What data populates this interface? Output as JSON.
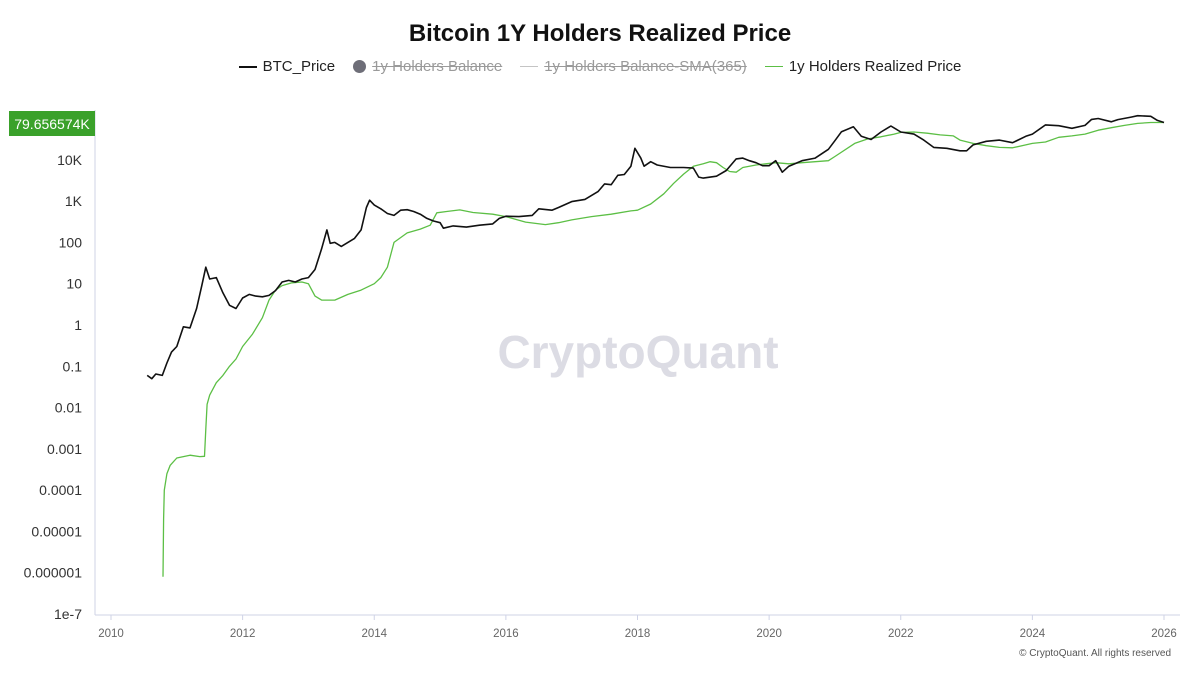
{
  "chart_data": {
    "type": "line",
    "title": "Bitcoin 1Y Holders Realized Price",
    "yscale": "log",
    "ylim": [
      1e-07,
      100000
    ],
    "xlim": [
      2010,
      2026
    ],
    "ytick_values": [
      1e-07,
      1e-06,
      1e-05,
      0.0001,
      0.001,
      0.01,
      0.1,
      1,
      10,
      100,
      1000,
      10000
    ],
    "ytick_labels": [
      "1e-7",
      "0.000001",
      "0.00001",
      "0.0001",
      "0.001",
      "0.01",
      "0.1",
      "1",
      "10",
      "100",
      "1K",
      "10K"
    ],
    "xtick_labels": [
      "2010",
      "2012",
      "2014",
      "2016",
      "2018",
      "2020",
      "2022",
      "2024",
      "2026"
    ],
    "current_value_label": "79.656574K",
    "current_value": 79656.574,
    "watermark": "CryptoQuant",
    "copyright": "© CryptoQuant. All rights reserved",
    "legend": [
      {
        "label": "BTC_Price",
        "symbol": "line",
        "color": "#111111",
        "active": true
      },
      {
        "label": "1y Holders Balance",
        "symbol": "dot",
        "color": "#6e6e78",
        "active": false
      },
      {
        "label": "1y Holders Balance-SMA(365)",
        "symbol": "thin-line",
        "color": "#c4c4c4",
        "active": false
      },
      {
        "label": "1y Holders Realized Price",
        "symbol": "line",
        "color": "#5cbf45",
        "active": true
      }
    ],
    "series": [
      {
        "name": "BTC_Price",
        "color": "#111111",
        "points": [
          [
            2010.55,
            0.06
          ],
          [
            2010.62,
            0.05
          ],
          [
            2010.68,
            0.065
          ],
          [
            2010.78,
            0.06
          ],
          [
            2010.85,
            0.12
          ],
          [
            2010.92,
            0.22
          ],
          [
            2011.0,
            0.3
          ],
          [
            2011.1,
            0.9
          ],
          [
            2011.2,
            0.85
          ],
          [
            2011.3,
            2.5
          ],
          [
            2011.38,
            9
          ],
          [
            2011.44,
            25
          ],
          [
            2011.5,
            13
          ],
          [
            2011.6,
            14
          ],
          [
            2011.7,
            6
          ],
          [
            2011.8,
            3
          ],
          [
            2011.9,
            2.5
          ],
          [
            2012.0,
            4.5
          ],
          [
            2012.1,
            5.5
          ],
          [
            2012.2,
            5
          ],
          [
            2012.3,
            4.8
          ],
          [
            2012.4,
            5.2
          ],
          [
            2012.5,
            6.8
          ],
          [
            2012.6,
            11
          ],
          [
            2012.7,
            12
          ],
          [
            2012.8,
            11
          ],
          [
            2012.9,
            13
          ],
          [
            2013.0,
            14
          ],
          [
            2013.1,
            22
          ],
          [
            2013.2,
            70
          ],
          [
            2013.28,
            200
          ],
          [
            2013.33,
            95
          ],
          [
            2013.4,
            100
          ],
          [
            2013.5,
            80
          ],
          [
            2013.6,
            100
          ],
          [
            2013.7,
            125
          ],
          [
            2013.8,
            200
          ],
          [
            2013.88,
            700
          ],
          [
            2013.93,
            1050
          ],
          [
            2014.0,
            800
          ],
          [
            2014.1,
            650
          ],
          [
            2014.2,
            500
          ],
          [
            2014.3,
            450
          ],
          [
            2014.4,
            600
          ],
          [
            2014.5,
            620
          ],
          [
            2014.6,
            560
          ],
          [
            2014.7,
            480
          ],
          [
            2014.8,
            380
          ],
          [
            2014.9,
            330
          ],
          [
            2015.0,
            300
          ],
          [
            2015.05,
            220
          ],
          [
            2015.2,
            250
          ],
          [
            2015.4,
            235
          ],
          [
            2015.6,
            260
          ],
          [
            2015.8,
            280
          ],
          [
            2015.9,
            380
          ],
          [
            2016.0,
            430
          ],
          [
            2016.2,
            420
          ],
          [
            2016.4,
            450
          ],
          [
            2016.5,
            650
          ],
          [
            2016.7,
            600
          ],
          [
            2016.8,
            700
          ],
          [
            2017.0,
            970
          ],
          [
            2017.2,
            1100
          ],
          [
            2017.4,
            1700
          ],
          [
            2017.5,
            2600
          ],
          [
            2017.6,
            2500
          ],
          [
            2017.7,
            4200
          ],
          [
            2017.8,
            4400
          ],
          [
            2017.9,
            7000
          ],
          [
            2017.96,
            19000
          ],
          [
            2018.05,
            11000
          ],
          [
            2018.1,
            7000
          ],
          [
            2018.2,
            9000
          ],
          [
            2018.3,
            7500
          ],
          [
            2018.5,
            6500
          ],
          [
            2018.7,
            6500
          ],
          [
            2018.85,
            6300
          ],
          [
            2018.93,
            3800
          ],
          [
            2019.0,
            3600
          ],
          [
            2019.2,
            4000
          ],
          [
            2019.35,
            5500
          ],
          [
            2019.5,
            10500
          ],
          [
            2019.6,
            11000
          ],
          [
            2019.7,
            9500
          ],
          [
            2019.8,
            8500
          ],
          [
            2019.9,
            7200
          ],
          [
            2020.0,
            7200
          ],
          [
            2020.1,
            9500
          ],
          [
            2020.2,
            5000
          ],
          [
            2020.3,
            7000
          ],
          [
            2020.5,
            9500
          ],
          [
            2020.7,
            11000
          ],
          [
            2020.9,
            18000
          ],
          [
            2021.0,
            29000
          ],
          [
            2021.1,
            48000
          ],
          [
            2021.28,
            63000
          ],
          [
            2021.4,
            37000
          ],
          [
            2021.55,
            31000
          ],
          [
            2021.7,
            47000
          ],
          [
            2021.85,
            66000
          ],
          [
            2022.0,
            47000
          ],
          [
            2022.2,
            42000
          ],
          [
            2022.35,
            30000
          ],
          [
            2022.5,
            20000
          ],
          [
            2022.7,
            19000
          ],
          [
            2022.9,
            16500
          ],
          [
            2023.0,
            16500
          ],
          [
            2023.1,
            23000
          ],
          [
            2023.3,
            28000
          ],
          [
            2023.5,
            30000
          ],
          [
            2023.7,
            26000
          ],
          [
            2023.9,
            37000
          ],
          [
            2024.0,
            42000
          ],
          [
            2024.2,
            70000
          ],
          [
            2024.4,
            67000
          ],
          [
            2024.6,
            58000
          ],
          [
            2024.8,
            68000
          ],
          [
            2024.9,
            95000
          ],
          [
            2025.0,
            100000
          ],
          [
            2025.2,
            83000
          ],
          [
            2025.3,
            94000
          ],
          [
            2025.5,
            108000
          ],
          [
            2025.6,
            117000
          ],
          [
            2025.8,
            113000
          ],
          [
            2025.9,
            90000
          ],
          [
            2026.0,
            80000
          ]
        ]
      },
      {
        "name": "1y Holders Realized Price",
        "color": "#5cbf45",
        "points": [
          [
            2010.79,
            8e-07
          ],
          [
            2010.8,
            2e-05
          ],
          [
            2010.81,
            0.0001
          ],
          [
            2010.85,
            0.00025
          ],
          [
            2010.9,
            0.0004
          ],
          [
            2011.0,
            0.0006
          ],
          [
            2011.2,
            0.0007
          ],
          [
            2011.35,
            0.00065
          ],
          [
            2011.42,
            0.00066
          ],
          [
            2011.44,
            0.003
          ],
          [
            2011.46,
            0.012
          ],
          [
            2011.5,
            0.02
          ],
          [
            2011.6,
            0.04
          ],
          [
            2011.7,
            0.06
          ],
          [
            2011.8,
            0.1
          ],
          [
            2011.9,
            0.15
          ],
          [
            2012.0,
            0.3
          ],
          [
            2012.15,
            0.6
          ],
          [
            2012.3,
            1.5
          ],
          [
            2012.4,
            4
          ],
          [
            2012.5,
            7
          ],
          [
            2012.6,
            9
          ],
          [
            2012.75,
            10.5
          ],
          [
            2012.9,
            11
          ],
          [
            2013.0,
            10
          ],
          [
            2013.1,
            5
          ],
          [
            2013.2,
            4
          ],
          [
            2013.4,
            4
          ],
          [
            2013.6,
            5.5
          ],
          [
            2013.8,
            7
          ],
          [
            2014.0,
            10
          ],
          [
            2014.1,
            14
          ],
          [
            2014.2,
            25
          ],
          [
            2014.3,
            100
          ],
          [
            2014.5,
            170
          ],
          [
            2014.7,
            210
          ],
          [
            2014.85,
            260
          ],
          [
            2014.95,
            520
          ],
          [
            2015.1,
            560
          ],
          [
            2015.3,
            610
          ],
          [
            2015.5,
            530
          ],
          [
            2015.8,
            480
          ],
          [
            2016.0,
            420
          ],
          [
            2016.3,
            310
          ],
          [
            2016.6,
            270
          ],
          [
            2016.8,
            300
          ],
          [
            2017.0,
            350
          ],
          [
            2017.3,
            420
          ],
          [
            2017.6,
            480
          ],
          [
            2017.9,
            580
          ],
          [
            2018.0,
            600
          ],
          [
            2018.2,
            850
          ],
          [
            2018.4,
            1500
          ],
          [
            2018.55,
            2700
          ],
          [
            2018.7,
            4500
          ],
          [
            2018.85,
            7000
          ],
          [
            2019.0,
            8000
          ],
          [
            2019.1,
            9000
          ],
          [
            2019.2,
            8500
          ],
          [
            2019.3,
            6500
          ],
          [
            2019.4,
            5200
          ],
          [
            2019.5,
            5000
          ],
          [
            2019.6,
            6500
          ],
          [
            2019.8,
            7500
          ],
          [
            2019.95,
            8000
          ],
          [
            2020.1,
            8500
          ],
          [
            2020.3,
            8000
          ],
          [
            2020.5,
            8500
          ],
          [
            2020.7,
            9000
          ],
          [
            2020.9,
            9500
          ],
          [
            2021.0,
            12000
          ],
          [
            2021.3,
            25000
          ],
          [
            2021.5,
            32000
          ],
          [
            2021.7,
            36000
          ],
          [
            2021.9,
            42000
          ],
          [
            2022.0,
            46000
          ],
          [
            2022.2,
            47000
          ],
          [
            2022.4,
            44000
          ],
          [
            2022.6,
            40000
          ],
          [
            2022.8,
            38000
          ],
          [
            2022.9,
            30000
          ],
          [
            2023.1,
            25000
          ],
          [
            2023.3,
            22000
          ],
          [
            2023.5,
            20000
          ],
          [
            2023.7,
            19500
          ],
          [
            2023.9,
            23000
          ],
          [
            2024.0,
            25000
          ],
          [
            2024.2,
            27000
          ],
          [
            2024.4,
            35000
          ],
          [
            2024.6,
            38000
          ],
          [
            2024.8,
            42000
          ],
          [
            2025.0,
            52000
          ],
          [
            2025.2,
            60000
          ],
          [
            2025.4,
            68000
          ],
          [
            2025.6,
            76000
          ],
          [
            2025.8,
            80000
          ],
          [
            2026.0,
            80000
          ]
        ]
      }
    ]
  }
}
